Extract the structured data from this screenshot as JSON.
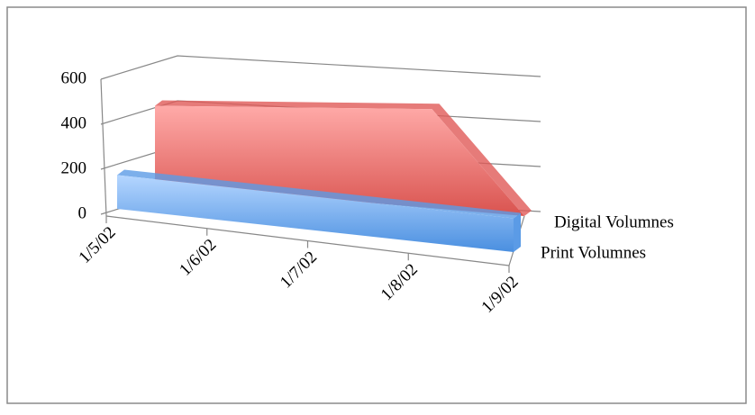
{
  "chart_data": {
    "type": "area3d",
    "categories": [
      "1/5/02",
      "1/6/02",
      "1/7/02",
      "1/8/02",
      "1/9/02"
    ],
    "series": [
      {
        "name": "Digital Volumnes",
        "color": "#e05a58",
        "values": [
          350,
          380,
          410,
          440,
          0
        ]
      },
      {
        "name": "Print Volumnes",
        "color": "#5b9be6",
        "values": [
          150,
          150,
          150,
          150,
          150
        ]
      }
    ],
    "ylim": [
      0,
      600
    ],
    "yticks": [
      0,
      200,
      400,
      600
    ],
    "grid": true,
    "legend": "right"
  }
}
